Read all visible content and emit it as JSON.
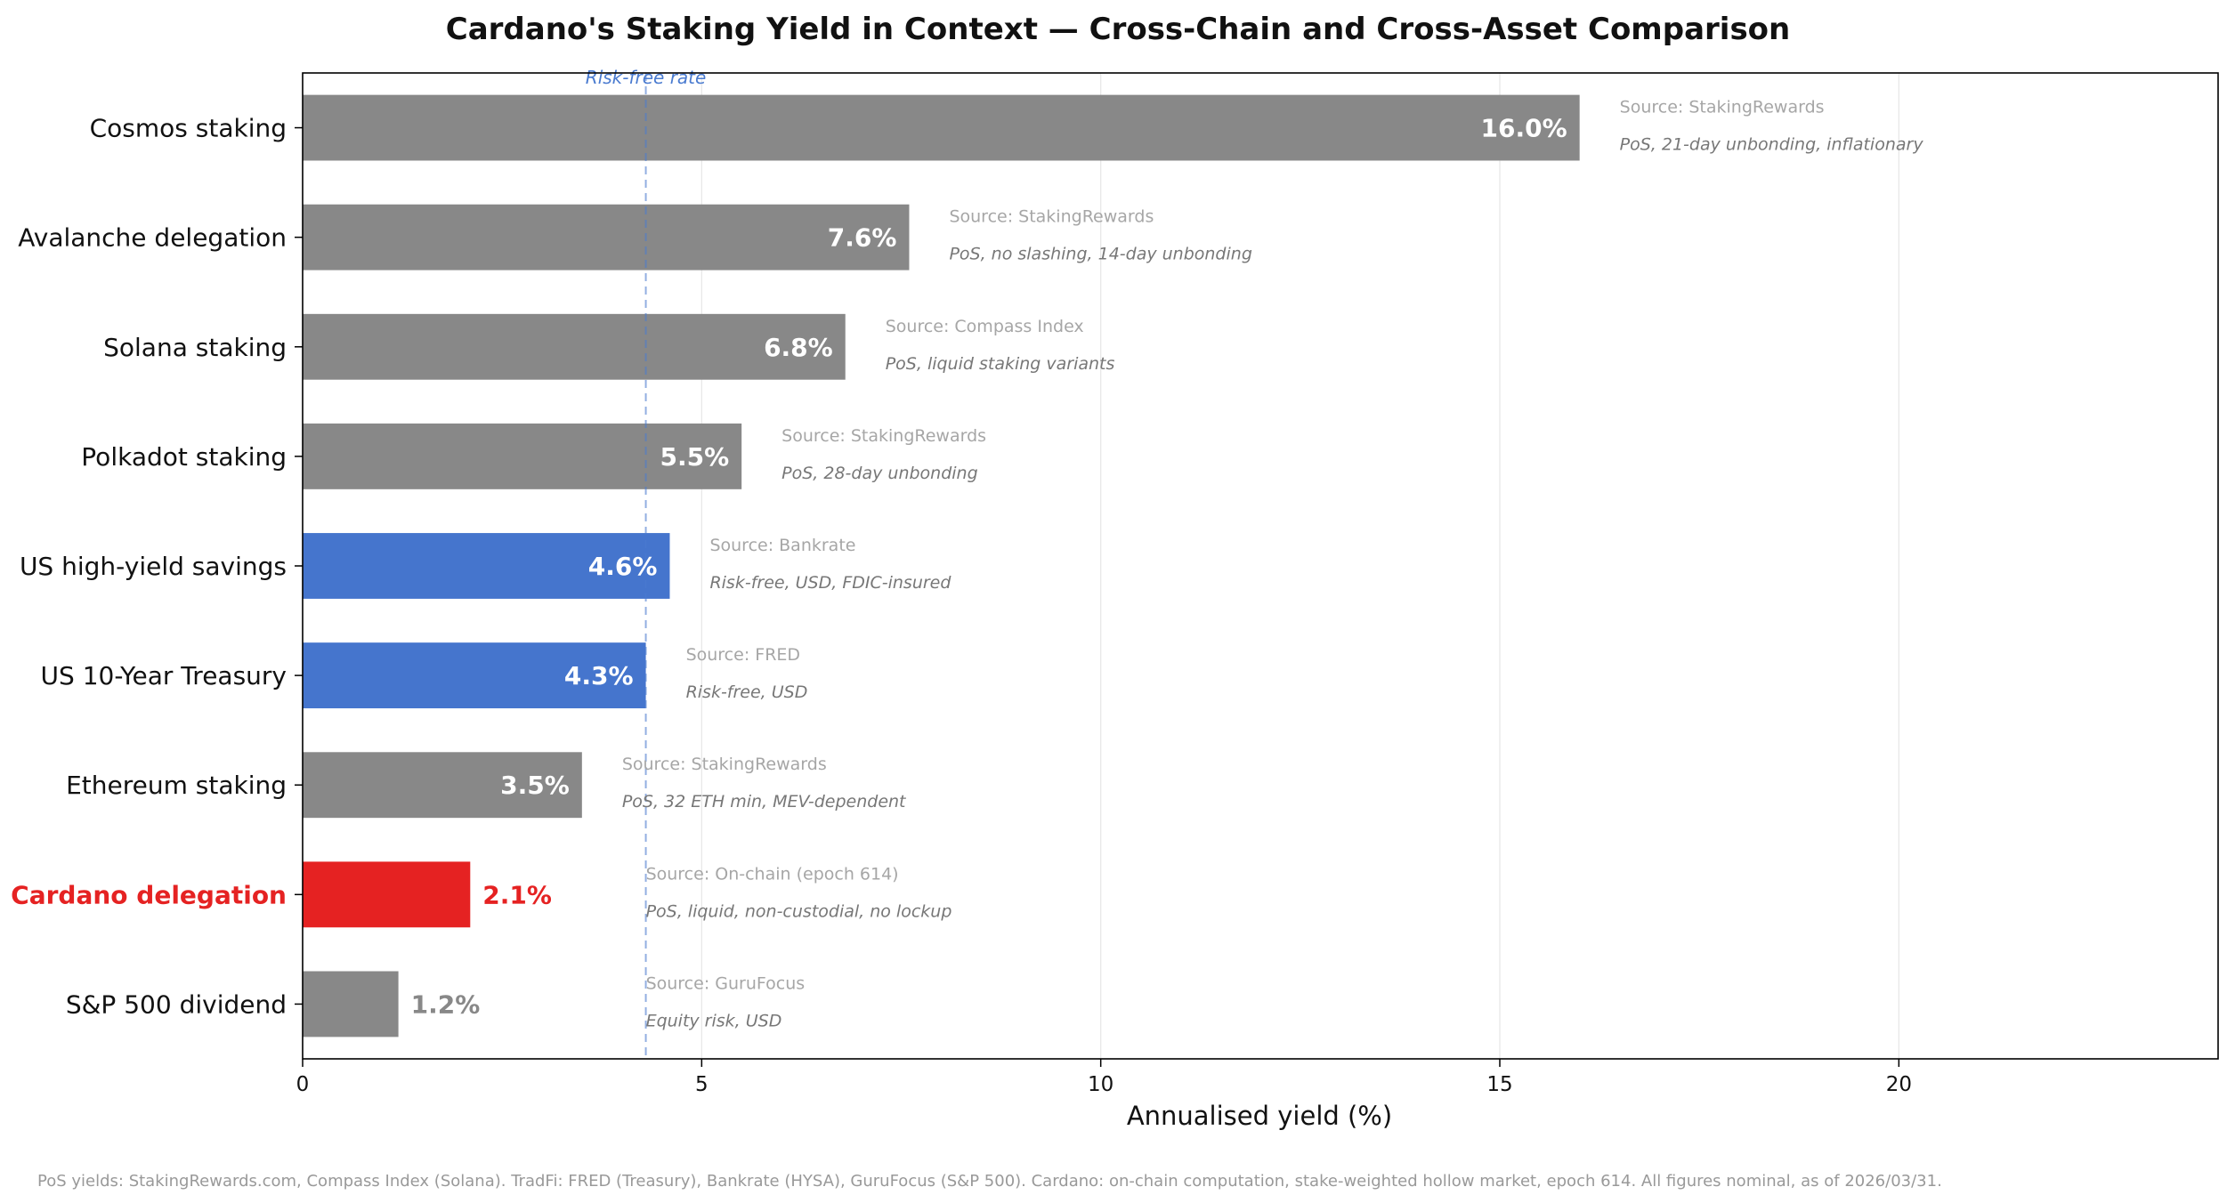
{
  "chart_data": {
    "type": "bar",
    "orientation": "horizontal",
    "title": "Cardano's Staking Yield in Context — Cross-Chain and Cross-Asset Comparison",
    "xlabel": "Annualised yield (%)",
    "ylabel": "",
    "xlim": [
      0,
      24
    ],
    "xticks": [
      0,
      5,
      10,
      15,
      20
    ],
    "grid": "x",
    "reference_line": {
      "value": 4.3,
      "label": "Risk-free rate",
      "color": "#4a7bd0"
    },
    "bars": [
      {
        "label": "Cosmos staking",
        "value": 16.0,
        "value_label": "16.0%",
        "color": "#888888",
        "source": "Source: StakingRewards",
        "note": "PoS, 21-day unbonding, inflationary",
        "highlight": false
      },
      {
        "label": "Avalanche delegation",
        "value": 7.6,
        "value_label": "7.6%",
        "color": "#888888",
        "source": "Source: StakingRewards",
        "note": "PoS, no slashing, 14-day unbonding",
        "highlight": false
      },
      {
        "label": "Solana staking",
        "value": 6.8,
        "value_label": "6.8%",
        "color": "#888888",
        "source": "Source: Compass Index",
        "note": "PoS, liquid staking variants",
        "highlight": false
      },
      {
        "label": "Polkadot staking",
        "value": 5.5,
        "value_label": "5.5%",
        "color": "#888888",
        "source": "Source: StakingRewards",
        "note": "PoS, 28-day unbonding",
        "highlight": false
      },
      {
        "label": "US high-yield savings",
        "value": 4.6,
        "value_label": "4.6%",
        "color": "#4575cd",
        "source": "Source: Bankrate",
        "note": "Risk-free, USD, FDIC-insured",
        "highlight": false
      },
      {
        "label": "US 10-Year Treasury",
        "value": 4.3,
        "value_label": "4.3%",
        "color": "#4575cd",
        "source": "Source: FRED",
        "note": "Risk-free, USD",
        "highlight": false
      },
      {
        "label": "Ethereum staking",
        "value": 3.5,
        "value_label": "3.5%",
        "color": "#888888",
        "source": "Source: StakingRewards",
        "note": "PoS, 32 ETH min, MEV-dependent",
        "highlight": false
      },
      {
        "label": "Cardano delegation",
        "value": 2.1,
        "value_label": "2.1%",
        "color": "#e52222",
        "source": "Source: On-chain (epoch 614)",
        "note": "PoS, liquid, non-custodial, no lockup",
        "highlight": true
      },
      {
        "label": "S&P 500 dividend",
        "value": 1.2,
        "value_label": "1.2%",
        "color": "#888888",
        "source": "Source: GuruFocus",
        "note": "Equity risk, USD",
        "highlight": false
      }
    ],
    "footnote": "PoS yields: StakingRewards.com, Compass Index (Solana). TradFi: FRED (Treasury), Bankrate (HYSA), GuruFocus (S&P 500). Cardano: on-chain computation, stake-weighted hollow market, epoch 614. All figures nominal, as of 2026/03/31."
  }
}
